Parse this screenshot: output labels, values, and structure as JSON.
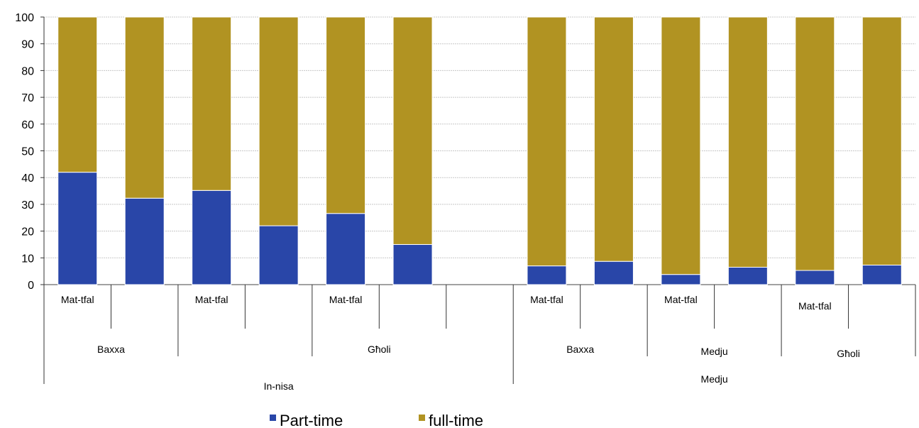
{
  "chart_data": {
    "type": "bar",
    "stacked": true,
    "ylim": [
      0,
      100
    ],
    "yticks": [
      "0",
      "10",
      "20",
      "30",
      "40",
      "50",
      "60",
      "70",
      "80",
      "90",
      "100"
    ],
    "grid": true,
    "legend_position": "bottom-center",
    "series": [
      {
        "name": "Part-time",
        "color": "#2946a8",
        "values": [
          42,
          32.3,
          35.2,
          22,
          26.6,
          15,
          null,
          7,
          8.7,
          3.8,
          6.5,
          5.3,
          7.3
        ]
      },
      {
        "name": "full-time",
        "color": "#b19322",
        "values": [
          58,
          67.7,
          64.8,
          78,
          73.4,
          85,
          null,
          93,
          91.3,
          96.2,
          93.5,
          94.7,
          92.7
        ]
      }
    ],
    "level1_labels": [
      {
        "text": "Mat-tfal"
      },
      {
        "text": "Mat-tfal"
      },
      {
        "text": "Mat-tfal"
      },
      {
        "text": "Mat-tfal"
      },
      {
        "text": "Mat-tfal"
      },
      {
        "text": "Mat-tfal"
      }
    ],
    "level2_labels": [
      {
        "text": "Baxxa"
      },
      {
        "text": "Għoli"
      },
      {
        "text": "Baxxa"
      },
      {
        "text": "Medju"
      },
      {
        "text": "Għoli"
      }
    ],
    "level3_labels": [
      {
        "text": "In-nisa"
      },
      {
        "text": "Medju"
      }
    ]
  }
}
